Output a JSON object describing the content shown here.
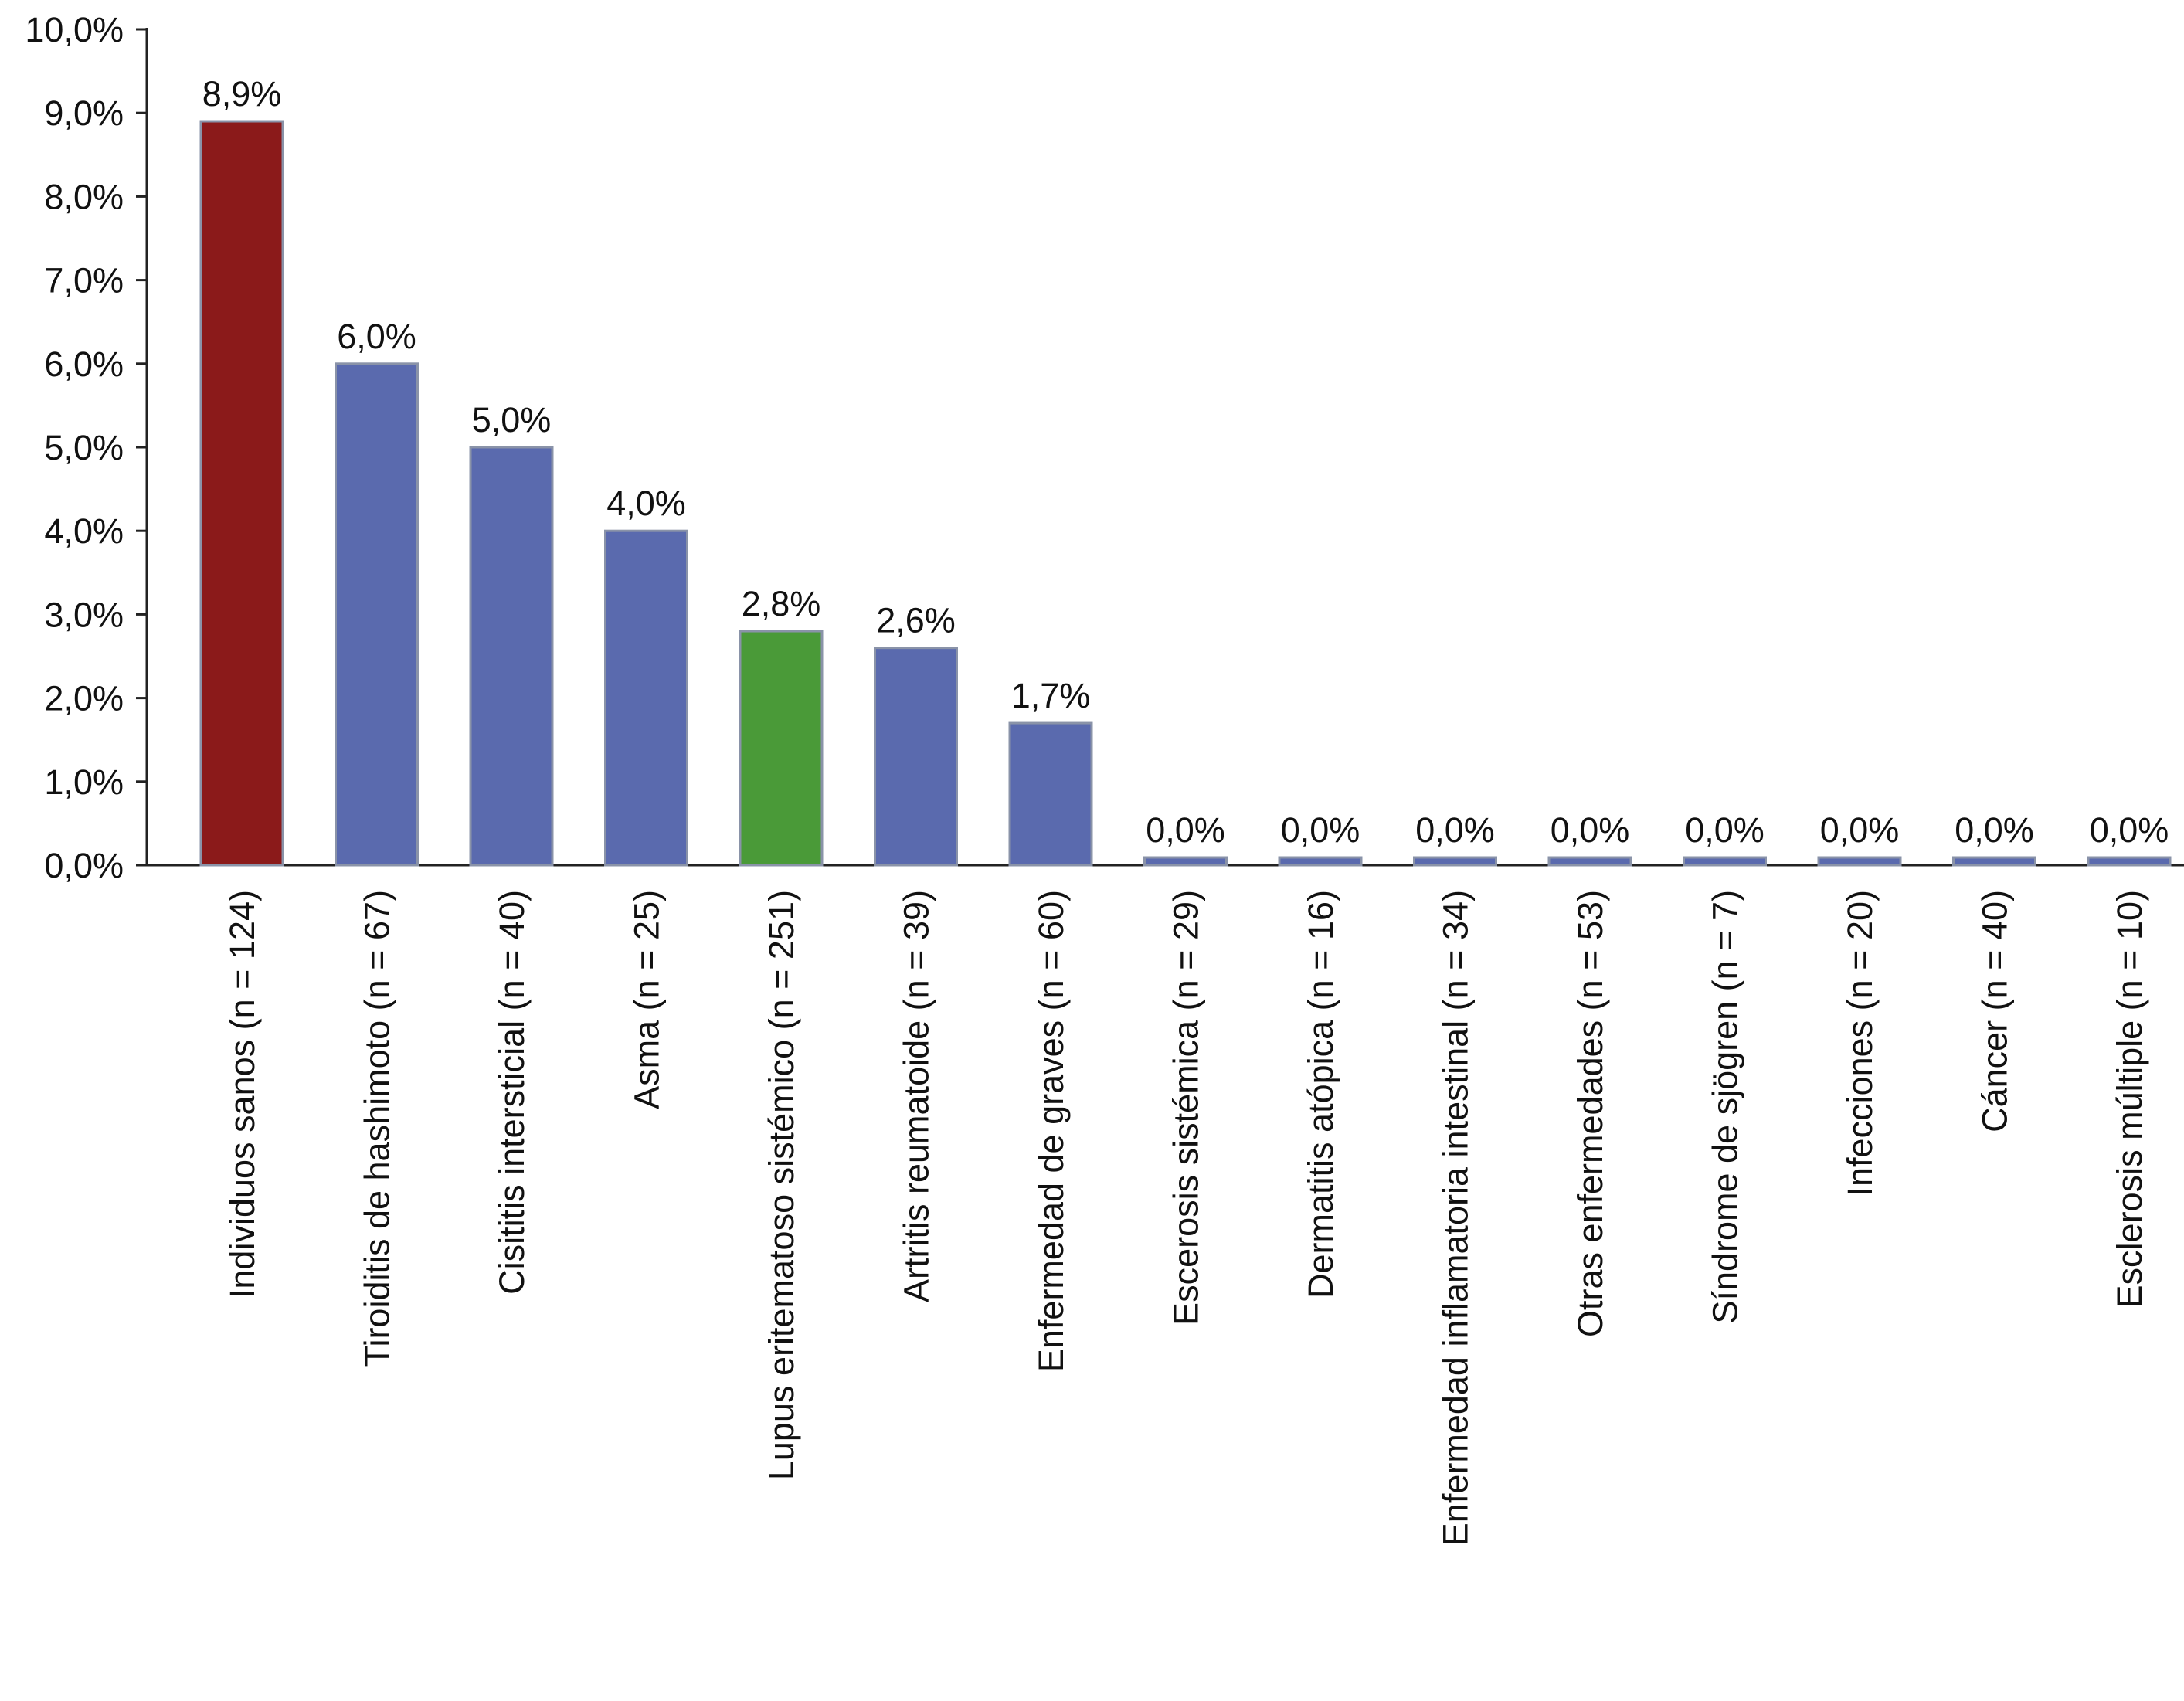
{
  "chart_data": {
    "type": "bar",
    "title": "",
    "xlabel": "",
    "ylabel": "",
    "ylim": [
      0,
      10
    ],
    "y_tick_values": [
      0,
      1,
      2,
      3,
      4,
      5,
      6,
      7,
      8,
      9,
      10
    ],
    "y_tick_labels": [
      "0,0%",
      "1,0%",
      "2,0%",
      "3,0%",
      "4,0%",
      "5,0%",
      "6,0%",
      "7,0%",
      "8,0%",
      "9,0%",
      "10,0%"
    ],
    "grid": false,
    "categories": [
      "Individuos sanos (n = 124)",
      "Tiroiditis de hashimoto (n = 67)",
      "Cisititis intersticial (n = 40)",
      "Asma (n = 25)",
      "Lupus eritematoso sistémico (n = 251)",
      "Artritis reumatoide (n = 39)",
      "Enfermedad de graves (n = 60)",
      "Escerosis sistémica (n = 29)",
      "Dermatitis atópica (n = 16)",
      "Enfermedad inflamatoria intestinal (n = 34)",
      "Otras enfermedades (n = 53)",
      "Síndrome de sjögren (n = 7)",
      "Infecciones (n = 20)",
      "Cáncer (n = 40)",
      "Esclerosis múltiple (n = 10)"
    ],
    "values": [
      8.9,
      6.0,
      5.0,
      4.0,
      2.8,
      2.6,
      1.7,
      0.0,
      0.0,
      0.0,
      0.0,
      0.0,
      0.0,
      0.0,
      0.0
    ],
    "value_labels": [
      "8,9%",
      "6,0%",
      "5,0%",
      "4,0%",
      "2,8%",
      "2,6%",
      "1,7%",
      "0,0%",
      "0,0%",
      "0,0%",
      "0,0%",
      "0,0%",
      "0,0%",
      "0,0%",
      "0,0%"
    ],
    "bar_colors": [
      "#8b1a1a",
      "#5a6aae",
      "#5a6aae",
      "#5a6aae",
      "#4a9a38",
      "#5a6aae",
      "#5a6aae",
      "#5a6aae",
      "#5a6aae",
      "#5a6aae",
      "#5a6aae",
      "#5a6aae",
      "#5a6aae",
      "#5a6aae",
      "#5a6aae"
    ]
  }
}
